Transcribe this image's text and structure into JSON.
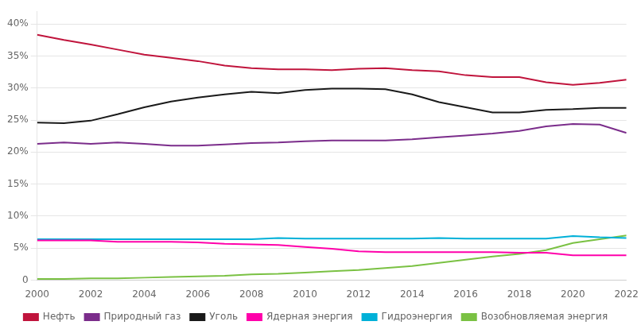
{
  "chart_data": {
    "type": "line",
    "x": [
      2000,
      2001,
      2002,
      2003,
      2004,
      2005,
      2006,
      2007,
      2008,
      2009,
      2010,
      2011,
      2012,
      2013,
      2014,
      2015,
      2016,
      2017,
      2018,
      2019,
      2020,
      2021,
      2022
    ],
    "series": [
      {
        "name": "Нефть",
        "color": "#c0143c",
        "values": [
          38.3,
          37.5,
          36.8,
          36.0,
          35.2,
          34.7,
          34.2,
          33.5,
          33.1,
          32.9,
          32.9,
          32.8,
          33.0,
          33.1,
          32.8,
          32.6,
          32.0,
          31.7,
          31.7,
          30.9,
          30.5,
          30.8,
          31.3
        ]
      },
      {
        "name": "Природный газ",
        "color": "#7b2d8b",
        "values": [
          21.3,
          21.5,
          21.3,
          21.5,
          21.3,
          21.0,
          21.0,
          21.2,
          21.4,
          21.5,
          21.7,
          21.8,
          21.8,
          21.8,
          22.0,
          22.3,
          22.6,
          22.9,
          23.3,
          24.0,
          24.4,
          24.3,
          23.0
        ]
      },
      {
        "name": "Уголь",
        "color": "#1a1a1a",
        "values": [
          24.6,
          24.5,
          24.9,
          25.9,
          27.0,
          27.9,
          28.5,
          29.0,
          29.4,
          29.2,
          29.7,
          29.9,
          29.9,
          29.8,
          29.0,
          27.8,
          27.0,
          26.2,
          26.2,
          26.6,
          26.7,
          26.9,
          26.9
        ]
      },
      {
        "name": "Ядерная энергия",
        "color": "#ff00aa",
        "values": [
          6.2,
          6.2,
          6.2,
          6.0,
          6.0,
          6.0,
          5.9,
          5.7,
          5.6,
          5.5,
          5.2,
          4.9,
          4.5,
          4.4,
          4.4,
          4.4,
          4.4,
          4.4,
          4.3,
          4.3,
          3.9,
          3.9,
          3.9
        ]
      },
      {
        "name": "Гидроэнергия",
        "color": "#00b0d8",
        "values": [
          6.4,
          6.4,
          6.4,
          6.4,
          6.4,
          6.4,
          6.4,
          6.4,
          6.4,
          6.6,
          6.5,
          6.5,
          6.5,
          6.5,
          6.5,
          6.6,
          6.5,
          6.5,
          6.5,
          6.5,
          6.9,
          6.7,
          6.6
        ]
      },
      {
        "name": "Возобновляемая энергия",
        "color": "#7ac143",
        "values": [
          0.2,
          0.2,
          0.3,
          0.3,
          0.4,
          0.5,
          0.6,
          0.7,
          0.9,
          1.0,
          1.2,
          1.4,
          1.6,
          1.9,
          2.2,
          2.7,
          3.2,
          3.7,
          4.1,
          4.7,
          5.8,
          6.4,
          7.0
        ]
      }
    ],
    "xlim": [
      2000,
      2022
    ],
    "xticks": [
      2000,
      2002,
      2004,
      2006,
      2008,
      2010,
      2012,
      2014,
      2016,
      2018,
      2020,
      2022
    ],
    "ylim": [
      0,
      42
    ],
    "yticks": [
      0,
      {
        "value": 5,
        "label": "5%"
      },
      {
        "value": 10,
        "label": "10%"
      },
      {
        "value": 15,
        "label": "15%"
      },
      {
        "value": 20,
        "label": "20%"
      },
      {
        "value": 25,
        "label": "25%"
      },
      {
        "value": 30,
        "label": "30%"
      },
      {
        "value": 35,
        "label": "35%"
      },
      {
        "value": 40,
        "label": "40%"
      }
    ],
    "grid": "y",
    "legend": "bottom"
  }
}
